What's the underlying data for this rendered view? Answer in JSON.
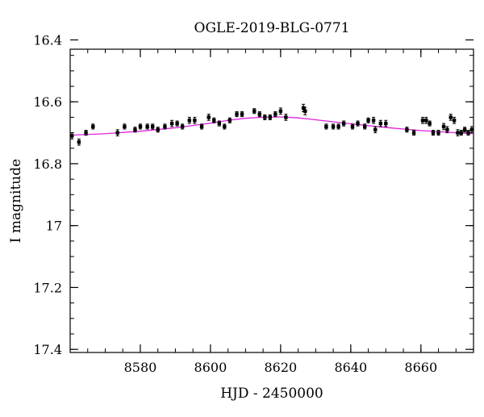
{
  "chart_data": {
    "type": "scatter",
    "title": "OGLE-2019-BLG-0771",
    "xlabel": "HJD - 2450000",
    "ylabel": "I magnitude",
    "xlim": [
      8560,
      8675
    ],
    "ylim": [
      17.41,
      16.43
    ],
    "y_inverted": true,
    "x_ticks": [
      8580,
      8600,
      8620,
      8640,
      8660
    ],
    "y_ticks": [
      16.4,
      16.6,
      16.8,
      17,
      17.2,
      17.4
    ],
    "y_tick_labels": [
      "16.4",
      "16.6",
      "16.8",
      "17",
      "17.2",
      "17.4"
    ],
    "x_minor_step": 5,
    "y_minor_step": 0.05,
    "grid": false,
    "model_color": "#e020e0",
    "point_color": "#000000",
    "model_curve": {
      "x": [
        8560,
        8570,
        8580,
        8590,
        8600,
        8605,
        8610,
        8615,
        8620,
        8625,
        8630,
        8640,
        8650,
        8660,
        8670,
        8675
      ],
      "y": [
        16.708,
        16.703,
        16.695,
        16.684,
        16.669,
        16.66,
        16.653,
        16.65,
        16.649,
        16.652,
        16.658,
        16.671,
        16.683,
        16.693,
        16.7,
        16.703
      ]
    },
    "observations": {
      "x": [
        8560.5,
        8562.5,
        8564.5,
        8566.5,
        8573.5,
        8575.5,
        8578.5,
        8580,
        8582,
        8583.5,
        8585,
        8587,
        8589,
        8590.5,
        8592,
        8594,
        8595.5,
        8597.5,
        8599.5,
        8601,
        8602.5,
        8604,
        8605.5,
        8607.5,
        8609,
        8612.5,
        8614,
        8615.5,
        8617,
        8618.5,
        8620,
        8621.5,
        8626.5,
        8627,
        8633,
        8635,
        8636.5,
        8638,
        8640.5,
        8642,
        8644,
        8645,
        8646.5,
        8647,
        8648.5,
        8650,
        8656,
        8658,
        8660.5,
        8661.5,
        8662.5,
        8663.5,
        8665,
        8666.5,
        8667.5,
        8668.5,
        8669.5,
        8670.5,
        8671.5,
        8672.5,
        8673.5,
        8674.5
      ],
      "y": [
        16.71,
        16.73,
        16.7,
        16.68,
        16.7,
        16.68,
        16.69,
        16.68,
        16.68,
        16.68,
        16.69,
        16.68,
        16.67,
        16.67,
        16.68,
        16.66,
        16.66,
        16.68,
        16.65,
        16.66,
        16.67,
        16.68,
        16.66,
        16.64,
        16.64,
        16.63,
        16.64,
        16.65,
        16.65,
        16.64,
        16.63,
        16.65,
        16.62,
        16.63,
        16.68,
        16.68,
        16.68,
        16.67,
        16.68,
        16.67,
        16.68,
        16.66,
        16.66,
        16.69,
        16.67,
        16.67,
        16.69,
        16.7,
        16.66,
        16.66,
        16.67,
        16.7,
        16.7,
        16.68,
        16.69,
        16.65,
        16.66,
        16.7,
        16.7,
        16.69,
        16.7,
        16.69
      ],
      "err": [
        0.01,
        0.01,
        0.008,
        0.008,
        0.01,
        0.008,
        0.008,
        0.008,
        0.008,
        0.008,
        0.008,
        0.008,
        0.01,
        0.008,
        0.008,
        0.01,
        0.01,
        0.008,
        0.01,
        0.008,
        0.008,
        0.008,
        0.008,
        0.008,
        0.008,
        0.008,
        0.008,
        0.008,
        0.008,
        0.008,
        0.01,
        0.01,
        0.012,
        0.012,
        0.008,
        0.008,
        0.008,
        0.008,
        0.008,
        0.008,
        0.008,
        0.008,
        0.01,
        0.01,
        0.01,
        0.01,
        0.008,
        0.008,
        0.01,
        0.01,
        0.008,
        0.008,
        0.008,
        0.01,
        0.01,
        0.01,
        0.01,
        0.01,
        0.008,
        0.008,
        0.008,
        0.01
      ]
    }
  }
}
